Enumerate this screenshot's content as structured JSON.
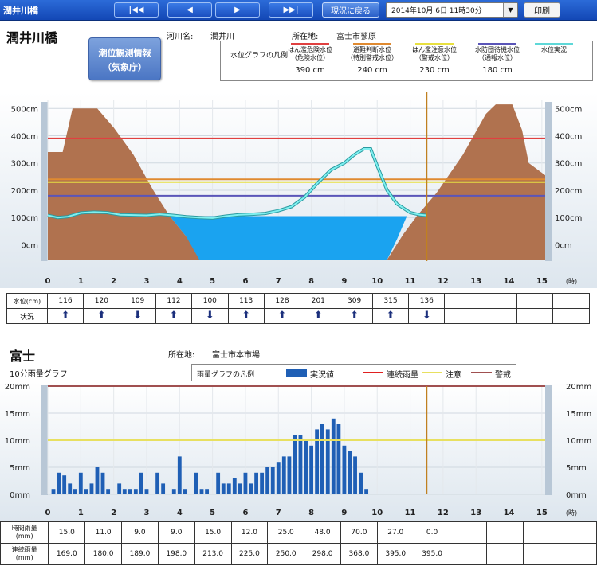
{
  "header": {
    "title": "潤井川橋",
    "nav": [
      "|◀◀",
      "◀",
      "▶",
      "▶▶|"
    ],
    "now_button": "現況に戻る",
    "datetime": "2014年10月 6日 11時30分",
    "print": "印刷"
  },
  "water": {
    "station": "潤井川橋",
    "river_label": "河川名:",
    "river": "潤井川",
    "location_label": "所在地:",
    "location": "富士市蓼原",
    "info_button": [
      "潮位観測情報",
      "（気象庁）"
    ],
    "legend_title": "水位グラフの凡例",
    "legend": [
      {
        "name": "はん濫危険水位",
        "sub": "（危険水位）",
        "value": "390 cm",
        "color": "#e04040"
      },
      {
        "name": "避難判断水位",
        "sub": "（特別警戒水位）",
        "value": "240 cm",
        "color": "#e08a30"
      },
      {
        "name": "はん濫注意水位",
        "sub": "（警戒水位）",
        "value": "230 cm",
        "color": "#e8e040"
      },
      {
        "name": "水防団待機水位",
        "sub": "（通報水位）",
        "value": "180 cm",
        "color": "#5a55b8"
      },
      {
        "name": "水位実況",
        "sub": "",
        "value": "",
        "color": "#5fd8d8"
      }
    ],
    "row_labels": [
      "水位(cm)",
      "状況"
    ],
    "levels": [
      "116",
      "120",
      "109",
      "112",
      "100",
      "113",
      "128",
      "201",
      "309",
      "315",
      "136"
    ],
    "trend": [
      "up",
      "up",
      "down",
      "up",
      "down",
      "up",
      "up",
      "up",
      "up",
      "up",
      "down"
    ]
  },
  "rain": {
    "station": "富士",
    "location_label": "所在地:",
    "location": "富士市本市場",
    "subtitle": "10分雨量グラフ",
    "legend_title": "雨量グラフの凡例",
    "legend": [
      {
        "name": "実況値",
        "color": "#1f5fb5"
      },
      {
        "name": "連続雨量",
        "color": "#e02020"
      },
      {
        "name": "注意",
        "color": "#e8e060"
      },
      {
        "name": "警戒",
        "color": "#a05050"
      }
    ],
    "row_labels": [
      [
        "時間雨量",
        "(mm)"
      ],
      [
        "連続雨量",
        "(mm)"
      ]
    ],
    "hourly": [
      "15.0",
      "11.0",
      "9.0",
      "9.0",
      "15.0",
      "12.0",
      "25.0",
      "48.0",
      "70.0",
      "27.0",
      "0.0"
    ],
    "cumulative": [
      "169.0",
      "180.0",
      "189.0",
      "198.0",
      "213.0",
      "225.0",
      "250.0",
      "298.0",
      "368.0",
      "395.0",
      "395.0"
    ]
  },
  "chart_data": [
    {
      "type": "line",
      "title": "",
      "x_unit": "(時)",
      "x_ticks": [
        "0",
        "1",
        "2",
        "3",
        "4",
        "5",
        "6",
        "7",
        "8",
        "9",
        "10",
        "11",
        "12",
        "13",
        "14",
        "15"
      ],
      "y_ticks": [
        "500cm",
        "400cm",
        "300cm",
        "200cm",
        "100cm",
        "0cm"
      ],
      "ylim": [
        -60,
        530
      ],
      "xlim": [
        0,
        15.1
      ],
      "thresholds": [
        {
          "value": 390,
          "color": "#e04040"
        },
        {
          "value": 240,
          "color": "#e08a30"
        },
        {
          "value": 230,
          "color": "#e8e040"
        },
        {
          "value": 180,
          "color": "#5a55b8"
        }
      ],
      "current_time": 11.5,
      "series": [
        {
          "x": [
            0,
            0.3,
            0.6,
            1,
            1.4,
            1.8,
            2.2,
            2.6,
            3,
            3.4,
            3.8,
            4.2,
            4.6,
            5,
            5.4,
            5.8,
            6.2,
            6.6,
            7,
            7.4,
            7.8,
            8.2,
            8.6,
            9,
            9.3,
            9.6,
            9.8,
            10,
            10.3,
            10.6,
            11,
            11.3,
            11.5
          ],
          "y": [
            108,
            100,
            103,
            117,
            120,
            118,
            110,
            109,
            108,
            112,
            108,
            103,
            100,
            98,
            105,
            110,
            112,
            115,
            125,
            140,
            175,
            228,
            275,
            300,
            330,
            352,
            352,
            290,
            200,
            150,
            118,
            110,
            108
          ]
        }
      ]
    },
    {
      "type": "bar",
      "title": "",
      "x_unit": "(時)",
      "x_ticks": [
        "0",
        "1",
        "2",
        "3",
        "4",
        "5",
        "6",
        "7",
        "8",
        "9",
        "10",
        "11",
        "12",
        "13",
        "14",
        "15"
      ],
      "y_ticks": [
        "20mm",
        "15mm",
        "10mm",
        "5mm",
        "0mm"
      ],
      "ylim": [
        0,
        20
      ],
      "xlim": [
        0,
        15.1
      ],
      "thresholds": [
        {
          "value": 20,
          "color": "#a05050"
        },
        {
          "value": 10,
          "color": "#e8e060"
        }
      ],
      "current_time": 11.5,
      "bar_width_hours": 0.1667,
      "x": [
        0.17,
        0.33,
        0.5,
        0.67,
        0.83,
        1.0,
        1.17,
        1.33,
        1.5,
        1.67,
        1.83,
        2.0,
        2.17,
        2.33,
        2.5,
        2.67,
        2.83,
        3.0,
        3.17,
        3.33,
        3.5,
        3.67,
        3.83,
        4.0,
        4.17,
        4.33,
        4.5,
        4.67,
        4.83,
        5.0,
        5.17,
        5.33,
        5.5,
        5.67,
        5.83,
        6.0,
        6.17,
        6.33,
        6.5,
        6.67,
        6.83,
        7.0,
        7.17,
        7.33,
        7.5,
        7.67,
        7.83,
        8.0,
        8.17,
        8.33,
        8.5,
        8.67,
        8.83,
        9.0,
        9.17,
        9.33,
        9.5,
        9.67,
        9.83
      ],
      "values": [
        1,
        4,
        3.5,
        2,
        1,
        4,
        1,
        2,
        5,
        4,
        1,
        0,
        2,
        1,
        1,
        1,
        4,
        1,
        0,
        4,
        2,
        0,
        1,
        7,
        1,
        0,
        4,
        1,
        1,
        0,
        4,
        2,
        2,
        3,
        2,
        4,
        2,
        4,
        4,
        5,
        5,
        6,
        7,
        7,
        11,
        11,
        10,
        9,
        12,
        13,
        12,
        14,
        13,
        9,
        8,
        7,
        4,
        1,
        0
      ]
    }
  ]
}
